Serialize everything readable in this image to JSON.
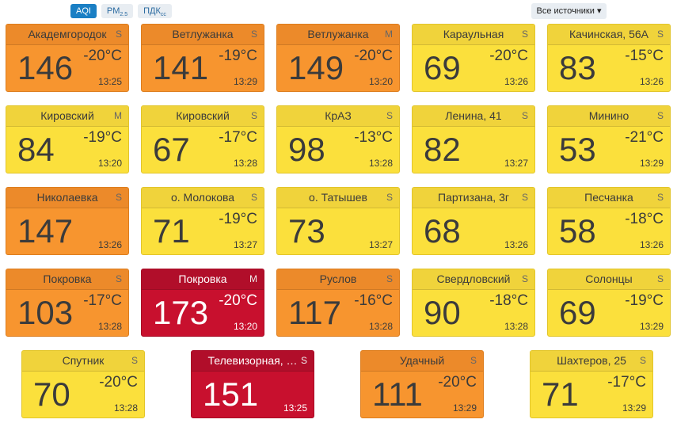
{
  "toolbar": {
    "buttons": [
      {
        "text": "AQI"
      },
      {
        "text": "PM",
        "sub": "2.5"
      },
      {
        "text": "ПДК",
        "sub": "сс"
      }
    ],
    "dropdown": "Все источники"
  },
  "cards": [
    {
      "name": "Академгородок",
      "badge": "S",
      "aqi": 146,
      "temp": "-20°C",
      "time": "13:25",
      "color": "orange"
    },
    {
      "name": "Ветлужанка",
      "badge": "S",
      "aqi": 141,
      "temp": "-19°C",
      "time": "13:29",
      "color": "orange"
    },
    {
      "name": "Ветлужанка",
      "badge": "M",
      "aqi": 149,
      "temp": "-20°C",
      "time": "13:20",
      "color": "orange"
    },
    {
      "name": "Караульная",
      "badge": "S",
      "aqi": 69,
      "temp": "-20°C",
      "time": "13:26",
      "color": "yellow"
    },
    {
      "name": "Качинская, 56А",
      "badge": "S",
      "aqi": 83,
      "temp": "-15°C",
      "time": "13:26",
      "color": "yellow"
    },
    {
      "name": "Кировский",
      "badge": "M",
      "aqi": 84,
      "temp": "-19°C",
      "time": "13:20",
      "color": "yellow"
    },
    {
      "name": "Кировский",
      "badge": "S",
      "aqi": 67,
      "temp": "-17°C",
      "time": "13:28",
      "color": "yellow"
    },
    {
      "name": "КрАЗ",
      "badge": "S",
      "aqi": 98,
      "temp": "-13°C",
      "time": "13:28",
      "color": "yellow"
    },
    {
      "name": "Ленина, 41",
      "badge": "S",
      "aqi": 82,
      "time": "13:27",
      "color": "yellow"
    },
    {
      "name": "Минино",
      "badge": "S",
      "aqi": 53,
      "temp": "-21°C",
      "time": "13:29",
      "color": "yellow"
    },
    {
      "name": "Николаевка",
      "badge": "S",
      "aqi": 147,
      "time": "13:26",
      "color": "orange"
    },
    {
      "name": "о. Молокова",
      "badge": "S",
      "aqi": 71,
      "temp": "-19°C",
      "time": "13:27",
      "color": "yellow"
    },
    {
      "name": "о. Татышев",
      "badge": "S",
      "aqi": 73,
      "time": "13:27",
      "color": "yellow"
    },
    {
      "name": "Партизана, 3г",
      "badge": "S",
      "aqi": 68,
      "time": "13:26",
      "color": "yellow"
    },
    {
      "name": "Песчанка",
      "badge": "S",
      "aqi": 58,
      "temp": "-18°C",
      "time": "13:26",
      "color": "yellow"
    },
    {
      "name": "Покровка",
      "badge": "S",
      "aqi": 103,
      "temp": "-17°C",
      "time": "13:28",
      "color": "orange"
    },
    {
      "name": "Покровка",
      "badge": "M",
      "aqi": 173,
      "temp": "-20°C",
      "time": "13:20",
      "color": "red"
    },
    {
      "name": "Руслов",
      "badge": "S",
      "aqi": 117,
      "temp": "-16°C",
      "time": "13:28",
      "color": "orange"
    },
    {
      "name": "Свердловский",
      "badge": "S",
      "aqi": 90,
      "temp": "-18°C",
      "time": "13:28",
      "color": "yellow"
    },
    {
      "name": "Солонцы",
      "badge": "S",
      "aqi": 69,
      "temp": "-19°C",
      "time": "13:29",
      "color": "yellow"
    },
    {
      "name": "Спутник",
      "badge": "S",
      "aqi": 70,
      "temp": "-20°C",
      "time": "13:28",
      "color": "yellow"
    },
    {
      "name": "Телевизорная, …",
      "badge": "S",
      "aqi": 151,
      "time": "13:25",
      "color": "red"
    },
    {
      "name": "Удачный",
      "badge": "S",
      "aqi": 111,
      "temp": "-20°C",
      "time": "13:29",
      "color": "orange"
    },
    {
      "name": "Шахтеров, 25",
      "badge": "S",
      "aqi": 71,
      "temp": "-17°C",
      "time": "13:29",
      "color": "yellow"
    }
  ]
}
